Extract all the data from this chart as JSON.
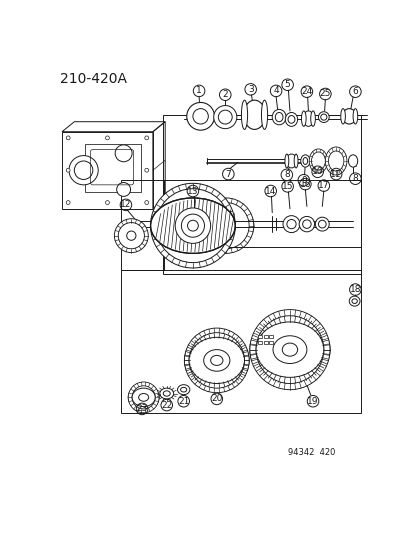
{
  "title": "210-420A",
  "watermark": "94342  420",
  "bg_color": "#ffffff",
  "line_color": "#1a1a1a",
  "title_fontsize": 10,
  "label_fontsize": 6.5,
  "fig_w": 4.14,
  "fig_h": 5.33,
  "dpi": 100
}
